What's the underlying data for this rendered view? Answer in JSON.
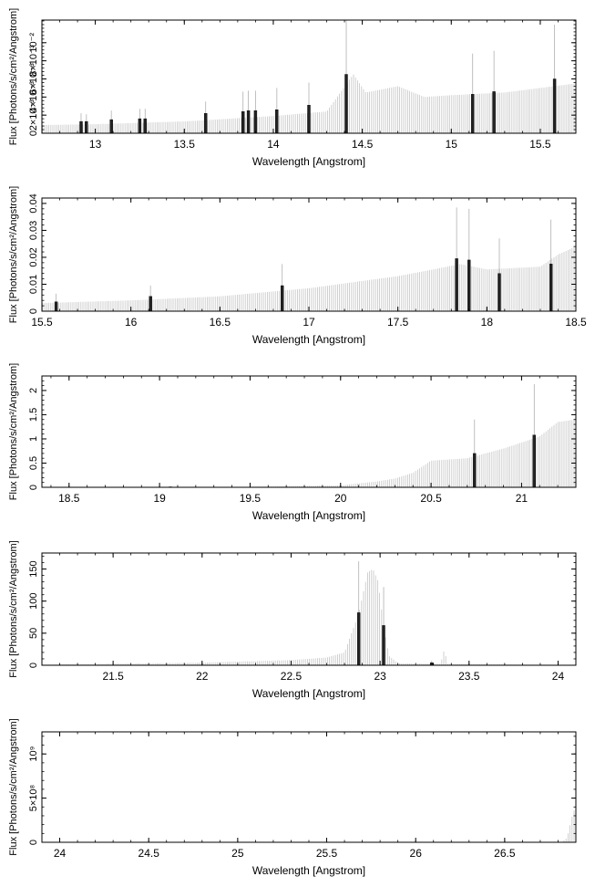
{
  "chart_data": [
    {
      "type": "bar",
      "xlabel": "Wavelength [Angstrom]",
      "ylabel": "Flux [Photons/s/cm²/Angstrom]",
      "xlim": [
        12.7,
        15.7
      ],
      "ylim": [
        0,
        0.0125
      ],
      "xticks": [
        "13",
        "13.5",
        "14",
        "14.5",
        "15",
        "15.5"
      ],
      "xtick_values": [
        13,
        13.5,
        14,
        14.5,
        15,
        15.5
      ],
      "yticks": [
        "0",
        "2×10⁻³",
        "4×10⁻³",
        "6×10⁻³",
        "8×10⁻³",
        "10⁻²"
      ],
      "ytick_values": [
        0,
        0.002,
        0.004,
        0.006,
        0.008,
        0.01
      ],
      "continuum": [
        [
          12.7,
          0.0009
        ],
        [
          13.0,
          0.001
        ],
        [
          13.5,
          0.0013
        ],
        [
          14.0,
          0.0019
        ],
        [
          14.3,
          0.0024
        ],
        [
          14.45,
          0.0065
        ],
        [
          14.52,
          0.0045
        ],
        [
          14.6,
          0.0048
        ],
        [
          14.7,
          0.0052
        ],
        [
          14.85,
          0.004
        ],
        [
          15.0,
          0.0042
        ],
        [
          15.3,
          0.0045
        ],
        [
          15.7,
          0.0055
        ]
      ],
      "lines": [
        {
          "x": 12.92,
          "y": 0.0013,
          "err": 0.0009
        },
        {
          "x": 12.95,
          "y": 0.0013,
          "err": 0.0008
        },
        {
          "x": 13.09,
          "y": 0.0015,
          "err": 0.001
        },
        {
          "x": 13.25,
          "y": 0.0016,
          "err": 0.0011
        },
        {
          "x": 13.28,
          "y": 0.0016,
          "err": 0.0011
        },
        {
          "x": 13.62,
          "y": 0.0022,
          "err": 0.0013
        },
        {
          "x": 13.83,
          "y": 0.0024,
          "err": 0.0022
        },
        {
          "x": 13.86,
          "y": 0.0025,
          "err": 0.0022
        },
        {
          "x": 13.9,
          "y": 0.0025,
          "err": 0.0022
        },
        {
          "x": 14.02,
          "y": 0.0026,
          "err": 0.0024
        },
        {
          "x": 14.2,
          "y": 0.0031,
          "err": 0.0025
        },
        {
          "x": 14.41,
          "y": 0.0065,
          "err": 0.0065
        },
        {
          "x": 15.12,
          "y": 0.0043,
          "err": 0.0045
        },
        {
          "x": 15.24,
          "y": 0.0046,
          "err": 0.0045
        },
        {
          "x": 15.58,
          "y": 0.006,
          "err": 0.006
        }
      ]
    },
    {
      "type": "bar",
      "xlabel": "Wavelength [Angstrom]",
      "ylabel": "Flux [Photons/s/cm²/Angstrom]",
      "xlim": [
        15.5,
        18.5
      ],
      "ylim": [
        0,
        0.042
      ],
      "xticks": [
        "15.5",
        "16",
        "16.5",
        "17",
        "17.5",
        "18",
        "18.5"
      ],
      "xtick_values": [
        15.5,
        16,
        16.5,
        17,
        17.5,
        18,
        18.5
      ],
      "yticks": [
        "0",
        "0.01",
        "0.02",
        "0.03",
        "0.04"
      ],
      "ytick_values": [
        0,
        0.01,
        0.02,
        0.03,
        0.04
      ],
      "continuum": [
        [
          15.5,
          0.003
        ],
        [
          16.0,
          0.004
        ],
        [
          16.5,
          0.0055
        ],
        [
          17.0,
          0.0085
        ],
        [
          17.5,
          0.013
        ],
        [
          17.7,
          0.0155
        ],
        [
          17.85,
          0.0175
        ],
        [
          18.0,
          0.0155
        ],
        [
          18.3,
          0.0165
        ],
        [
          18.4,
          0.021
        ],
        [
          18.5,
          0.024
        ]
      ],
      "lines": [
        {
          "x": 15.58,
          "y": 0.0035,
          "err": 0.003
        },
        {
          "x": 16.11,
          "y": 0.0055,
          "err": 0.004
        },
        {
          "x": 16.85,
          "y": 0.0095,
          "err": 0.008
        },
        {
          "x": 17.83,
          "y": 0.0195,
          "err": 0.019
        },
        {
          "x": 17.9,
          "y": 0.019,
          "err": 0.019
        },
        {
          "x": 18.07,
          "y": 0.014,
          "err": 0.013
        },
        {
          "x": 18.36,
          "y": 0.0175,
          "err": 0.0165
        }
      ]
    },
    {
      "type": "bar",
      "xlabel": "Wavelength [Angstrom]",
      "ylabel": "Flux [Photons/s/cm²/Angstrom]",
      "xlim": [
        18.35,
        21.3
      ],
      "ylim": [
        0,
        2.3
      ],
      "xticks": [
        "18.5",
        "19",
        "19.5",
        "20",
        "20.5",
        "21"
      ],
      "xtick_values": [
        18.5,
        19,
        19.5,
        20,
        20.5,
        21
      ],
      "yticks": [
        "0",
        "0.5",
        "1",
        "1.5",
        "2"
      ],
      "ytick_values": [
        0,
        0.5,
        1,
        1.5,
        2
      ],
      "continuum": [
        [
          18.35,
          0.005
        ],
        [
          19.5,
          0.01
        ],
        [
          20.0,
          0.04
        ],
        [
          20.2,
          0.12
        ],
        [
          20.3,
          0.18
        ],
        [
          20.4,
          0.3
        ],
        [
          20.5,
          0.55
        ],
        [
          20.7,
          0.6
        ],
        [
          20.9,
          0.8
        ],
        [
          21.1,
          1.05
        ],
        [
          21.2,
          1.35
        ],
        [
          21.3,
          1.4
        ]
      ],
      "lines": [
        {
          "x": 19.06,
          "y": 0.01,
          "err": 0.01
        },
        {
          "x": 20.74,
          "y": 0.7,
          "err": 0.7
        },
        {
          "x": 21.07,
          "y": 1.08,
          "err": 1.05
        }
      ]
    },
    {
      "type": "bar",
      "xlabel": "Wavelength [Angstrom]",
      "ylabel": "Flux [Photons/s/cm²/Angstrom]",
      "xlim": [
        21.1,
        24.1
      ],
      "ylim": [
        0,
        175
      ],
      "xticks": [
        "21.5",
        "22",
        "22.5",
        "23",
        "23.5",
        "24"
      ],
      "xtick_values": [
        21.5,
        22,
        22.5,
        23,
        23.5,
        24
      ],
      "yticks": [
        "0",
        "50",
        "100",
        "150"
      ],
      "ytick_values": [
        0,
        50,
        100,
        150
      ],
      "continuum": [
        [
          21.1,
          1
        ],
        [
          22.0,
          4
        ],
        [
          22.5,
          8
        ],
        [
          22.7,
          12
        ],
        [
          22.8,
          20
        ],
        [
          22.88,
          80
        ],
        [
          22.93,
          145
        ],
        [
          22.96,
          150
        ],
        [
          22.99,
          130
        ],
        [
          23.02,
          60
        ],
        [
          23.05,
          15
        ],
        [
          23.1,
          3
        ],
        [
          23.34,
          2
        ],
        [
          23.36,
          24
        ],
        [
          23.38,
          2
        ],
        [
          24.1,
          0.5
        ]
      ],
      "lines": [
        {
          "x": 22.88,
          "y": 82,
          "err": 80
        },
        {
          "x": 23.02,
          "y": 62,
          "err": 60
        },
        {
          "x": 23.29,
          "y": 4,
          "err": 3
        }
      ]
    },
    {
      "type": "bar",
      "xlabel": "Wavelength [Angstrom]",
      "ylabel": "Flux [Photons/s/cm²/Angstrom]",
      "xlim": [
        23.9,
        26.9
      ],
      "ylim": [
        0,
        1250000000.0
      ],
      "xticks": [
        "24",
        "24.5",
        "25",
        "25.5",
        "26",
        "26.5"
      ],
      "xtick_values": [
        24,
        24.5,
        25,
        25.5,
        26,
        26.5
      ],
      "yticks": [
        "0",
        "5×10⁸",
        "10⁹"
      ],
      "ytick_values": [
        0,
        500000000,
        1000000000
      ],
      "continuum": [
        [
          23.9,
          0
        ],
        [
          26.82,
          0
        ],
        [
          26.85,
          50000000
        ],
        [
          26.88,
          300000000
        ],
        [
          26.9,
          420000000
        ]
      ],
      "lines": []
    }
  ]
}
